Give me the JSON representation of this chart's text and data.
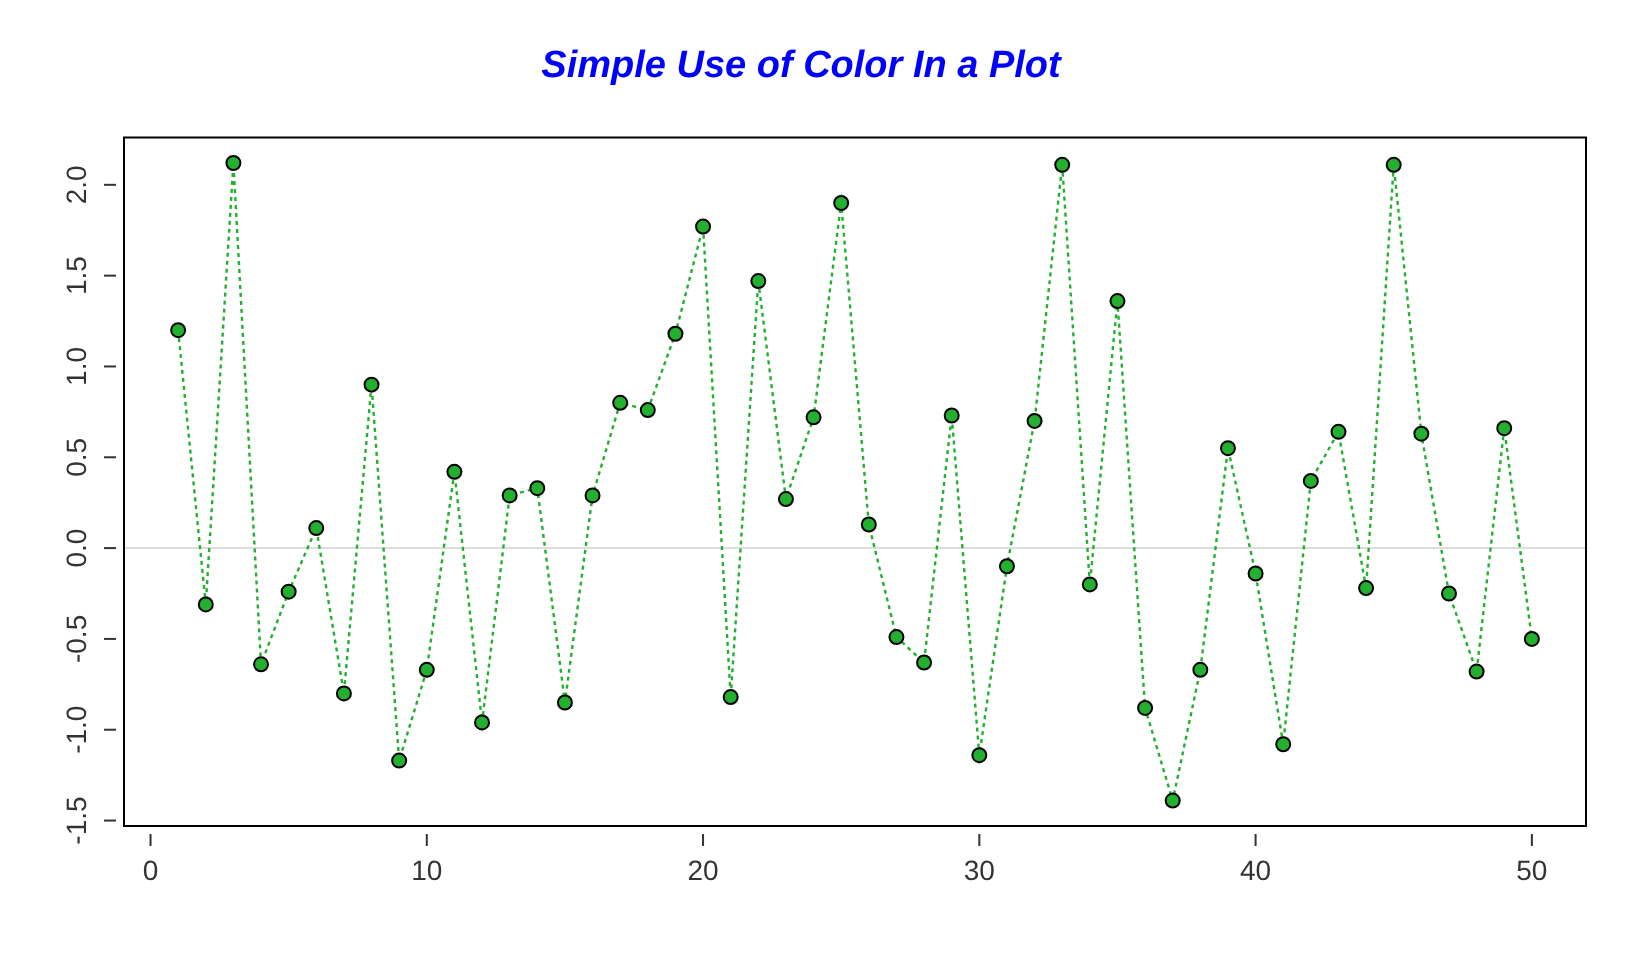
{
  "chart_data": {
    "type": "line",
    "title": "Simple Use of Color In a Plot",
    "x": [
      1,
      2,
      3,
      4,
      5,
      6,
      7,
      8,
      9,
      10,
      11,
      12,
      13,
      14,
      15,
      16,
      17,
      18,
      19,
      20,
      21,
      22,
      23,
      24,
      25,
      26,
      27,
      28,
      29,
      30,
      31,
      32,
      33,
      34,
      35,
      36,
      37,
      38,
      39,
      40,
      41,
      42,
      43,
      44,
      45,
      46,
      47,
      48,
      49,
      50
    ],
    "series": [
      {
        "color": "#22b02e",
        "values": [
          1.2,
          -0.31,
          2.12,
          -0.64,
          -0.24,
          0.11,
          -0.8,
          0.9,
          -1.17,
          -0.67,
          0.42,
          -0.96,
          0.29,
          0.33,
          -0.85,
          0.29,
          0.8,
          0.76,
          1.18,
          1.77,
          -0.82,
          1.47,
          0.27,
          0.72,
          1.9,
          0.13,
          -0.49,
          -0.63,
          0.73,
          -1.14,
          -0.1,
          0.7,
          2.11,
          -0.2,
          1.36,
          -0.88,
          -1.39,
          -0.67,
          0.55,
          -0.14,
          -1.08,
          0.37,
          0.64,
          -0.22,
          2.11,
          0.63,
          -0.25,
          -0.68,
          0.66,
          -0.5
        ]
      }
    ],
    "xlim": [
      -0.96,
      51.96
    ],
    "xticks": [
      0,
      10,
      20,
      30,
      40,
      50
    ],
    "ylim": [
      -1.53,
      2.26
    ],
    "yticks": [
      {
        "value": -1.5,
        "label": "-1.5"
      },
      {
        "value": -1,
        "label": "-1.0"
      },
      {
        "value": -0.5,
        "label": "-0.5"
      },
      {
        "value": 0,
        "label": "0.0"
      },
      {
        "value": 0.5,
        "label": "0.5"
      },
      {
        "value": 1,
        "label": "1.0"
      },
      {
        "value": 1.5,
        "label": "1.5"
      },
      {
        "value": 2,
        "label": "2.0"
      }
    ],
    "ref_lines": [
      {
        "axis": "y",
        "value": 0,
        "color": "#dddddd"
      }
    ],
    "grid": false,
    "legend": false,
    "marker": "circle",
    "line_style": "dotted"
  }
}
